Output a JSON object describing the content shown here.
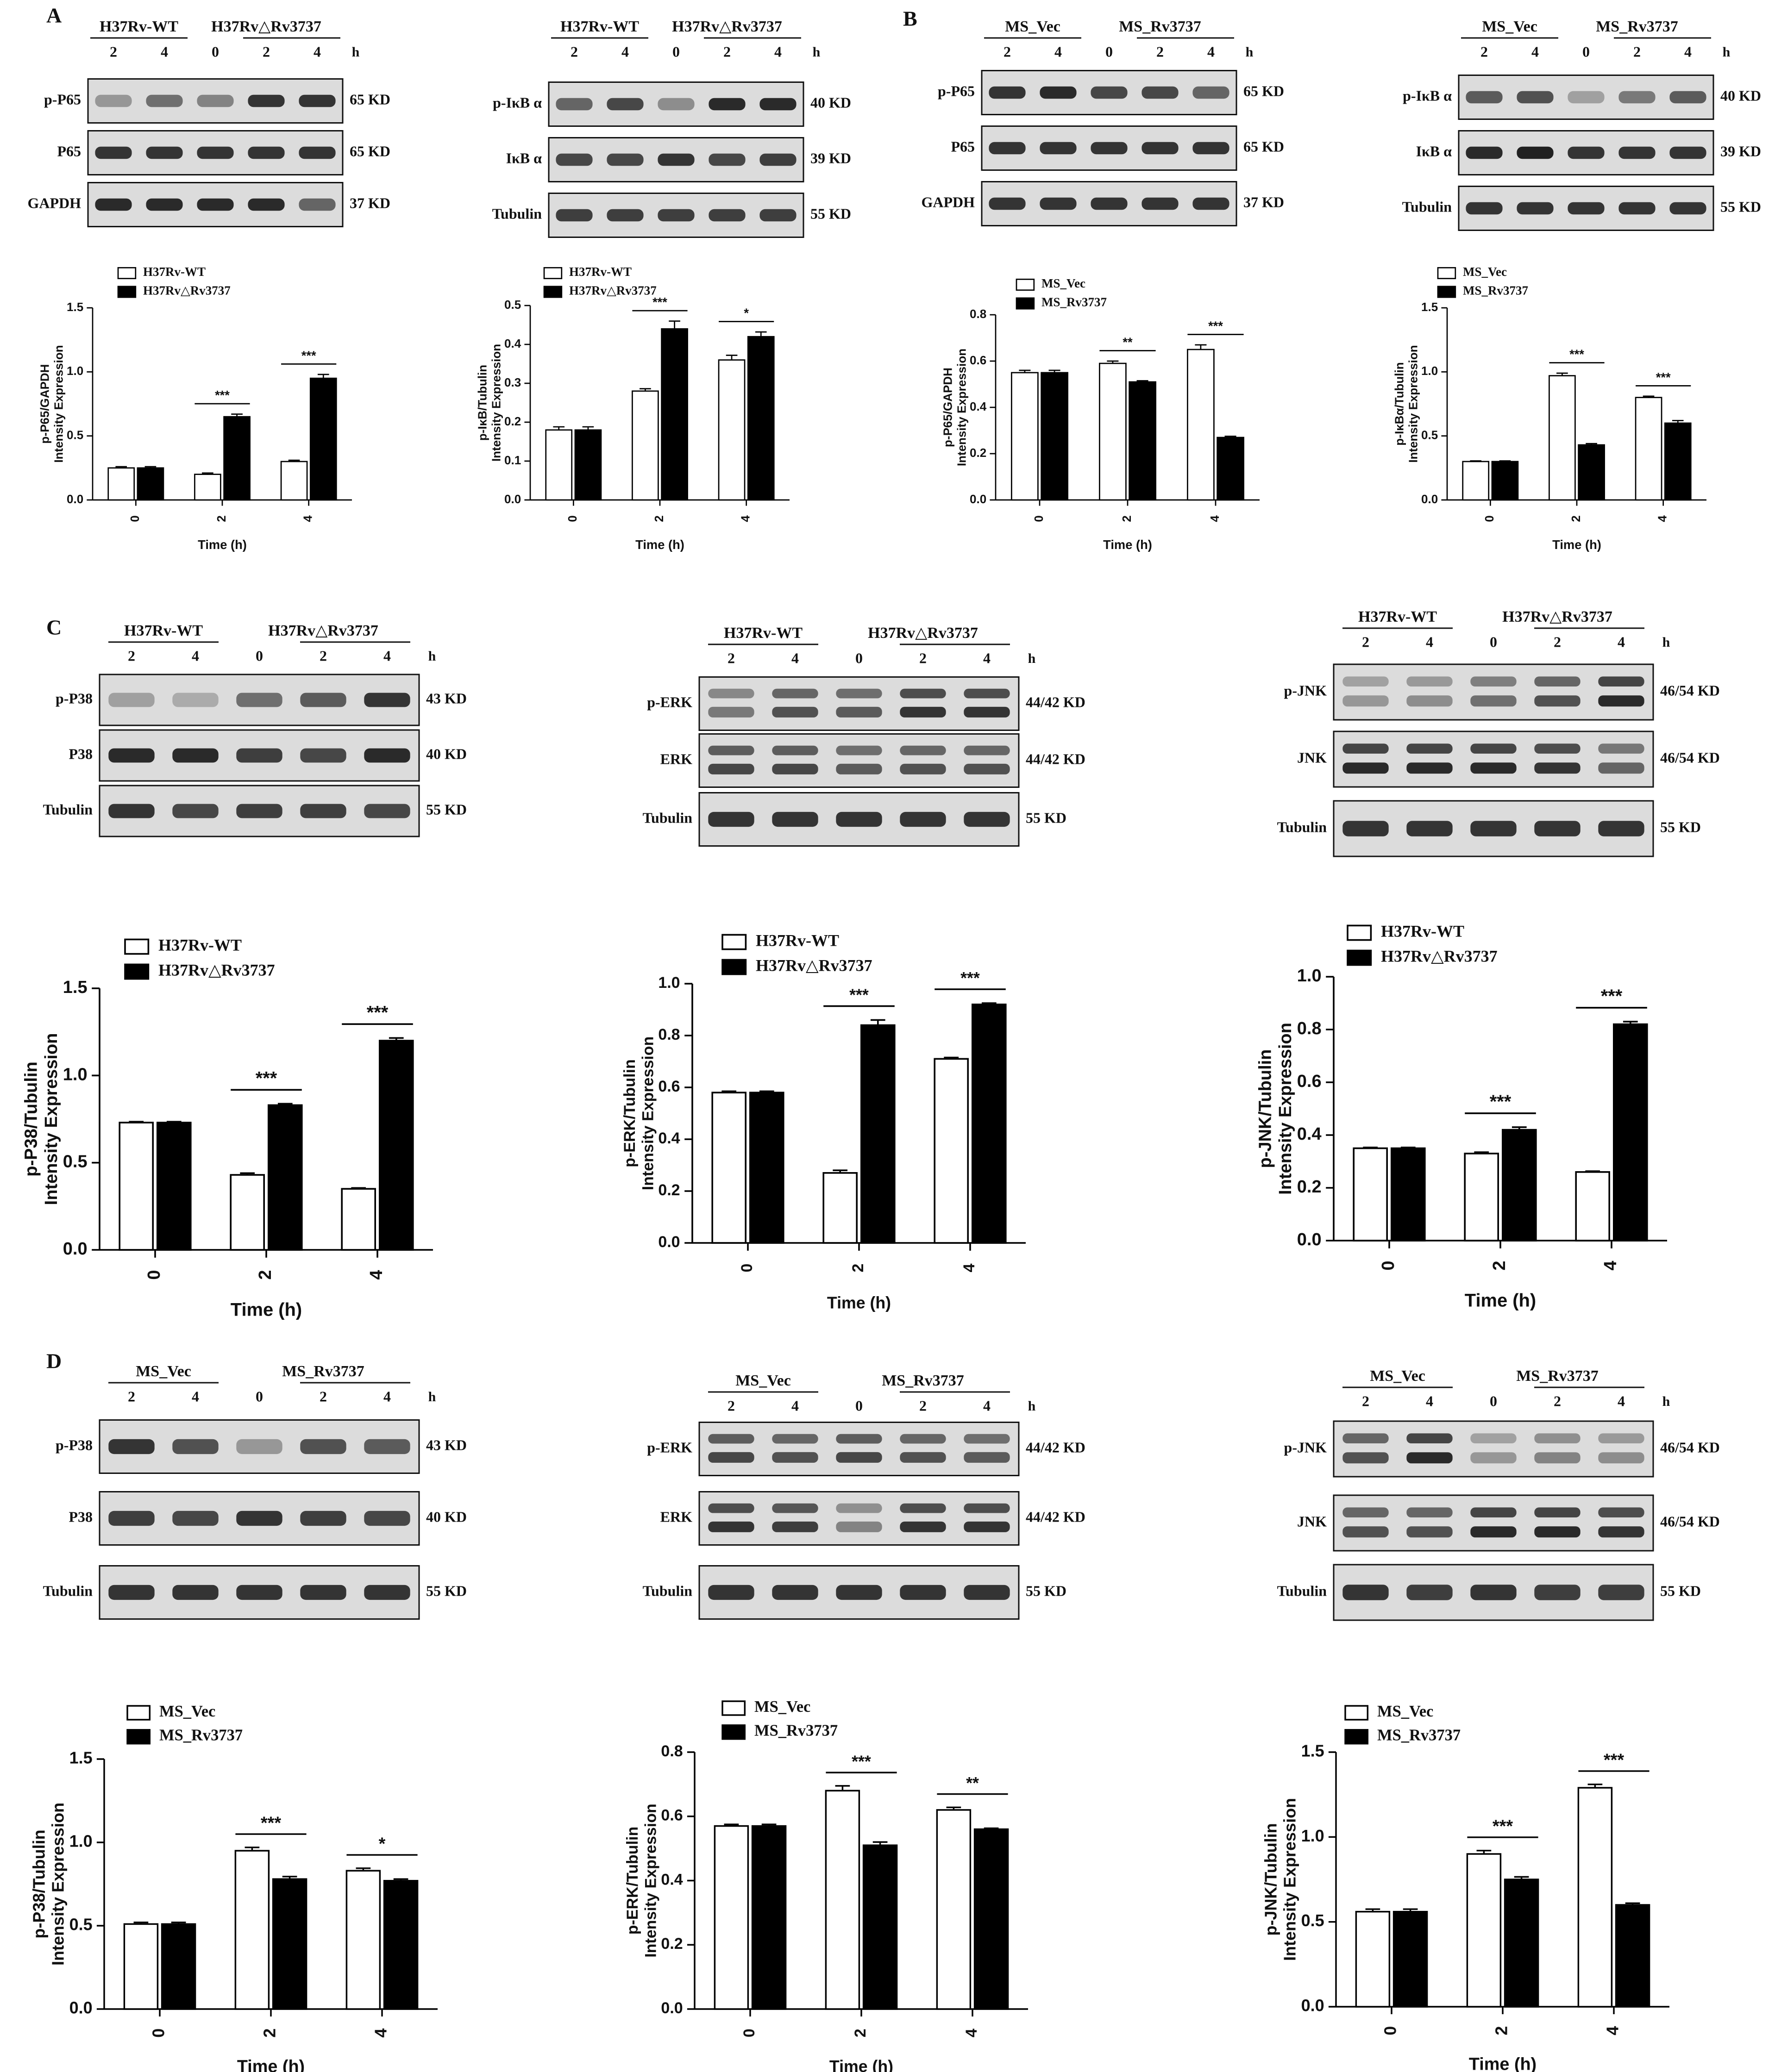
{
  "panel_letters": [
    "A",
    "B",
    "C",
    "D"
  ],
  "time_unit": "h",
  "band_colors": {
    "dark": "#161616",
    "blot_bg": "#dcdcdc"
  },
  "blots": [
    {
      "panel": "A",
      "group1": "H37Rv-WT",
      "group2": "H37Rv△Rv3737",
      "lanes": [
        "2",
        "4",
        "0",
        "2",
        "4"
      ],
      "rows": [
        {
          "label": "p-P65",
          "kd": "65 KD",
          "intensity": [
            0.35,
            0.55,
            0.45,
            0.85,
            0.85
          ]
        },
        {
          "label": "P65",
          "kd": "65 KD",
          "intensity": [
            0.85,
            0.85,
            0.85,
            0.85,
            0.85
          ]
        },
        {
          "label": "GAPDH",
          "kd": "37 KD",
          "intensity": [
            0.9,
            0.9,
            0.9,
            0.9,
            0.6
          ]
        }
      ]
    },
    {
      "panel": "A",
      "group1": "H37Rv-WT",
      "group2": "H37Rv△Rv3737",
      "lanes": [
        "2",
        "4",
        "0",
        "2",
        "4"
      ],
      "rows": [
        {
          "label": "p-IκB α",
          "kd": "40 KD",
          "intensity": [
            0.6,
            0.75,
            0.4,
            0.9,
            0.9
          ]
        },
        {
          "label": "IκB α",
          "kd": "39 KD",
          "intensity": [
            0.75,
            0.75,
            0.85,
            0.75,
            0.8
          ]
        },
        {
          "label": "Tubulin",
          "kd": "55 KD",
          "intensity": [
            0.8,
            0.8,
            0.8,
            0.8,
            0.8
          ]
        }
      ]
    },
    {
      "panel": "B",
      "group1": "MS_Vec",
      "group2": "MS_Rv3737",
      "lanes": [
        "2",
        "4",
        "0",
        "2",
        "4"
      ],
      "rows": [
        {
          "label": "p-P65",
          "kd": "65 KD",
          "intensity": [
            0.85,
            0.9,
            0.75,
            0.75,
            0.6
          ]
        },
        {
          "label": "P65",
          "kd": "65 KD",
          "intensity": [
            0.85,
            0.85,
            0.85,
            0.85,
            0.85
          ]
        },
        {
          "label": "GAPDH",
          "kd": "37 KD",
          "intensity": [
            0.85,
            0.85,
            0.85,
            0.85,
            0.85
          ]
        }
      ]
    },
    {
      "panel": "B",
      "group1": "MS_Vec",
      "group2": "MS_Rv3737",
      "lanes": [
        "2",
        "4",
        "0",
        "2",
        "4"
      ],
      "rows": [
        {
          "label": "p-IκB α",
          "kd": "40 KD",
          "intensity": [
            0.65,
            0.7,
            0.3,
            0.5,
            0.65
          ]
        },
        {
          "label": "IκB α",
          "kd": "39 KD",
          "intensity": [
            0.9,
            0.95,
            0.85,
            0.85,
            0.85
          ]
        },
        {
          "label": "Tubulin",
          "kd": "55 KD",
          "intensity": [
            0.85,
            0.85,
            0.85,
            0.85,
            0.85
          ]
        }
      ]
    },
    {
      "panel": "C",
      "group1": "H37Rv-WT",
      "group2": "H37Rv△Rv3737",
      "lanes": [
        "2",
        "4",
        "0",
        "2",
        "4"
      ],
      "rows": [
        {
          "label": "p-P38",
          "kd": "43 KD",
          "intensity": [
            0.3,
            0.25,
            0.55,
            0.65,
            0.85
          ]
        },
        {
          "label": "P38",
          "kd": "40 KD",
          "intensity": [
            0.9,
            0.9,
            0.8,
            0.75,
            0.9
          ]
        },
        {
          "label": "Tubulin",
          "kd": "55 KD",
          "intensity": [
            0.85,
            0.75,
            0.8,
            0.8,
            0.75
          ]
        }
      ]
    },
    {
      "panel": "C",
      "group1": "H37Rv-WT",
      "group2": "H37Rv△Rv3737",
      "lanes": [
        "2",
        "4",
        "0",
        "2",
        "4"
      ],
      "rows": [
        {
          "label": "p-ERK",
          "kd": "44/42 KD",
          "intensity": [
            0.5,
            0.7,
            0.65,
            0.85,
            0.85
          ],
          "double": true
        },
        {
          "label": "ERK",
          "kd": "44/42 KD",
          "intensity": [
            0.75,
            0.75,
            0.65,
            0.7,
            0.7
          ],
          "double": true
        },
        {
          "label": "Tubulin",
          "kd": "55 KD",
          "intensity": [
            0.85,
            0.85,
            0.85,
            0.85,
            0.85
          ]
        }
      ]
    },
    {
      "panel": "C",
      "group1": "H37Rv-WT",
      "group2": "H37Rv△Rv3737",
      "lanes": [
        "2",
        "4",
        "0",
        "2",
        "4"
      ],
      "rows": [
        {
          "label": "p-JNK",
          "kd": "46/54 KD",
          "intensity": [
            0.35,
            0.4,
            0.55,
            0.7,
            0.9
          ],
          "double": true
        },
        {
          "label": "JNK",
          "kd": "46/54 KD",
          "intensity": [
            0.9,
            0.9,
            0.9,
            0.85,
            0.6
          ],
          "double": true
        },
        {
          "label": "Tubulin",
          "kd": "55 KD",
          "intensity": [
            0.85,
            0.85,
            0.85,
            0.85,
            0.85
          ]
        }
      ]
    },
    {
      "panel": "D",
      "group1": "MS_Vec",
      "group2": "MS_Rv3737",
      "lanes": [
        "2",
        "4",
        "0",
        "2",
        "4"
      ],
      "rows": [
        {
          "label": "p-P38",
          "kd": "43 KD",
          "intensity": [
            0.85,
            0.7,
            0.35,
            0.7,
            0.65
          ]
        },
        {
          "label": "P38",
          "kd": "40 KD",
          "intensity": [
            0.8,
            0.75,
            0.85,
            0.8,
            0.75
          ]
        },
        {
          "label": "Tubulin",
          "kd": "55 KD",
          "intensity": [
            0.85,
            0.85,
            0.85,
            0.85,
            0.85
          ]
        }
      ]
    },
    {
      "panel": "D",
      "group1": "MS_Vec",
      "group2": "MS_Rv3737",
      "lanes": [
        "2",
        "4",
        "0",
        "2",
        "4"
      ],
      "rows": [
        {
          "label": "p-ERK",
          "kd": "44/42 KD",
          "intensity": [
            0.75,
            0.7,
            0.75,
            0.7,
            0.65
          ],
          "double": true
        },
        {
          "label": "ERK",
          "kd": "44/42 KD",
          "intensity": [
            0.85,
            0.8,
            0.45,
            0.85,
            0.85
          ],
          "double": true
        },
        {
          "label": "Tubulin",
          "kd": "55 KD",
          "intensity": [
            0.85,
            0.85,
            0.85,
            0.85,
            0.85
          ]
        }
      ]
    },
    {
      "panel": "D",
      "group1": "MS_Vec",
      "group2": "MS_Rv3737",
      "lanes": [
        "2",
        "4",
        "0",
        "2",
        "4"
      ],
      "rows": [
        {
          "label": "p-JNK",
          "kd": "46/54 KD",
          "intensity": [
            0.7,
            0.9,
            0.35,
            0.45,
            0.4
          ],
          "double": true
        },
        {
          "label": "JNK",
          "kd": "46/54 KD",
          "intensity": [
            0.7,
            0.7,
            0.9,
            0.9,
            0.85
          ],
          "double": true
        },
        {
          "label": "Tubulin",
          "kd": "55 KD",
          "intensity": [
            0.85,
            0.8,
            0.85,
            0.8,
            0.8
          ]
        }
      ]
    }
  ],
  "chart_data": [
    {
      "type": "bar",
      "panel": "A",
      "categories": [
        "0",
        "2",
        "4"
      ],
      "series": [
        {
          "name": "H37Rv-WT",
          "values": [
            0.25,
            0.2,
            0.3
          ],
          "errors": [
            0.01,
            0.01,
            0.01
          ]
        },
        {
          "name": "H37Rv△Rv3737",
          "values": [
            0.25,
            0.65,
            0.95
          ],
          "errors": [
            0.01,
            0.02,
            0.03
          ]
        }
      ],
      "xlabel": "Time (h)",
      "ylabel": [
        "p-P65/GAPDH",
        "Intensity Expression"
      ],
      "ylim": [
        0,
        1.5
      ],
      "yticks": [
        0,
        0.5,
        1.0,
        1.5
      ],
      "yticklabels": [
        "0.0",
        "0.5",
        "1.0",
        "1.5"
      ],
      "significance": [
        {
          "category": "2",
          "label": "***"
        },
        {
          "category": "4",
          "label": "***"
        }
      ],
      "legend": "top-left"
    },
    {
      "type": "bar",
      "panel": "A",
      "categories": [
        "0",
        "2",
        "4"
      ],
      "series": [
        {
          "name": "H37Rv-WT",
          "values": [
            0.18,
            0.28,
            0.36
          ],
          "errors": [
            0.008,
            0.006,
            0.012
          ]
        },
        {
          "name": "H37Rv△Rv3737",
          "values": [
            0.18,
            0.44,
            0.42
          ],
          "errors": [
            0.008,
            0.02,
            0.012
          ]
        }
      ],
      "xlabel": "Time (h)",
      "ylabel": [
        "p-IκB/Tubulin",
        "Intensity Expression"
      ],
      "ylim": [
        0,
        0.5
      ],
      "yticks": [
        0,
        0.1,
        0.2,
        0.3,
        0.4,
        0.5
      ],
      "yticklabels": [
        "0.0",
        "0.1",
        "0.2",
        "0.3",
        "0.4",
        "0.5"
      ],
      "significance": [
        {
          "category": "2",
          "label": "***"
        },
        {
          "category": "4",
          "label": "*"
        }
      ],
      "legend": "top-left"
    },
    {
      "type": "bar",
      "panel": "B",
      "categories": [
        "0",
        "2",
        "4"
      ],
      "series": [
        {
          "name": "MS_Vec",
          "values": [
            0.55,
            0.59,
            0.65
          ],
          "errors": [
            0.01,
            0.01,
            0.02
          ]
        },
        {
          "name": "MS_Rv3737",
          "values": [
            0.55,
            0.51,
            0.27
          ],
          "errors": [
            0.01,
            0.005,
            0.005
          ]
        }
      ],
      "xlabel": "Time (h)",
      "ylabel": [
        "p-P65/GAPDH",
        "Intensity Expression"
      ],
      "ylim": [
        0,
        0.8
      ],
      "yticks": [
        0,
        0.2,
        0.4,
        0.6,
        0.8
      ],
      "yticklabels": [
        "0.0",
        "0.2",
        "0.4",
        "0.6",
        "0.8"
      ],
      "significance": [
        {
          "category": "2",
          "label": "**"
        },
        {
          "category": "4",
          "label": "***"
        }
      ],
      "legend": "top-left"
    },
    {
      "type": "bar",
      "panel": "B",
      "categories": [
        "0",
        "2",
        "4"
      ],
      "series": [
        {
          "name": "MS_Vec",
          "values": [
            0.3,
            0.97,
            0.8
          ],
          "errors": [
            0.005,
            0.02,
            0.01
          ]
        },
        {
          "name": "MS_Rv3737",
          "values": [
            0.3,
            0.43,
            0.6
          ],
          "errors": [
            0.005,
            0.01,
            0.02
          ]
        }
      ],
      "xlabel": "Time (h)",
      "ylabel": [
        "p-IκBα/Tubulin",
        "Intensity Expression"
      ],
      "ylim": [
        0,
        1.5
      ],
      "yticks": [
        0,
        0.5,
        1.0,
        1.5
      ],
      "yticklabels": [
        "0.0",
        "0.5",
        "1.0",
        "1.5"
      ],
      "significance": [
        {
          "category": "2",
          "label": "***"
        },
        {
          "category": "4",
          "label": "***"
        }
      ],
      "legend": "top-left"
    },
    {
      "type": "bar",
      "panel": "C",
      "categories": [
        "0",
        "2",
        "4"
      ],
      "series": [
        {
          "name": "H37Rv-WT",
          "values": [
            0.73,
            0.43,
            0.35
          ],
          "errors": [
            0.005,
            0.01,
            0.005
          ]
        },
        {
          "name": "H37Rv△Rv3737",
          "values": [
            0.73,
            0.83,
            1.2
          ],
          "errors": [
            0.005,
            0.008,
            0.015
          ]
        }
      ],
      "xlabel": "Time (h)",
      "ylabel": [
        "p-P38/Tubulin",
        "Intensity Expression"
      ],
      "ylim": [
        0,
        1.5
      ],
      "yticks": [
        0,
        0.5,
        1.0,
        1.5
      ],
      "yticklabels": [
        "0.0",
        "0.5",
        "1.0",
        "1.5"
      ],
      "significance": [
        {
          "category": "2",
          "label": "***"
        },
        {
          "category": "4",
          "label": "***"
        }
      ],
      "legend": "top-left"
    },
    {
      "type": "bar",
      "panel": "C",
      "categories": [
        "0",
        "2",
        "4"
      ],
      "series": [
        {
          "name": "H37Rv-WT",
          "values": [
            0.58,
            0.27,
            0.71
          ],
          "errors": [
            0.005,
            0.01,
            0.005
          ]
        },
        {
          "name": "H37Rv△Rv3737",
          "values": [
            0.58,
            0.84,
            0.92
          ],
          "errors": [
            0.005,
            0.02,
            0.005
          ]
        }
      ],
      "xlabel": "Time (h)",
      "ylabel": [
        "p-ERK/Tubulin",
        "Intensity Expression"
      ],
      "ylim": [
        0,
        1.0
      ],
      "yticks": [
        0,
        0.2,
        0.4,
        0.6,
        0.8,
        1.0
      ],
      "yticklabels": [
        "0.0",
        "0.2",
        "0.4",
        "0.6",
        "0.8",
        "1.0"
      ],
      "significance": [
        {
          "category": "2",
          "label": "***"
        },
        {
          "category": "4",
          "label": "***"
        }
      ],
      "legend": "top-left"
    },
    {
      "type": "bar",
      "panel": "C",
      "categories": [
        "0",
        "2",
        "4"
      ],
      "series": [
        {
          "name": "H37Rv-WT",
          "values": [
            0.35,
            0.33,
            0.26
          ],
          "errors": [
            0.003,
            0.005,
            0.003
          ]
        },
        {
          "name": "H37Rv△Rv3737",
          "values": [
            0.35,
            0.42,
            0.82
          ],
          "errors": [
            0.003,
            0.01,
            0.01
          ]
        }
      ],
      "xlabel": "Time (h)",
      "ylabel": [
        "p-JNK/Tubulin",
        "Intensity Expression"
      ],
      "ylim": [
        0,
        1.0
      ],
      "yticks": [
        0,
        0.2,
        0.4,
        0.6,
        0.8,
        1.0
      ],
      "yticklabels": [
        "0.0",
        "0.2",
        "0.4",
        "0.6",
        "0.8",
        "1.0"
      ],
      "significance": [
        {
          "category": "2",
          "label": "***"
        },
        {
          "category": "4",
          "label": "***"
        }
      ],
      "legend": "top-left"
    },
    {
      "type": "bar",
      "panel": "D",
      "categories": [
        "0",
        "2",
        "4"
      ],
      "series": [
        {
          "name": "MS_Vec",
          "values": [
            0.51,
            0.95,
            0.83
          ],
          "errors": [
            0.01,
            0.02,
            0.015
          ]
        },
        {
          "name": "MS_Rv3737",
          "values": [
            0.51,
            0.78,
            0.77
          ],
          "errors": [
            0.01,
            0.015,
            0.01
          ]
        }
      ],
      "xlabel": "Time (h)",
      "ylabel": [
        "p-P38/Tubulin",
        "Intensity Expression"
      ],
      "ylim": [
        0,
        1.5
      ],
      "yticks": [
        0,
        0.5,
        1.0,
        1.5
      ],
      "yticklabels": [
        "0.0",
        "0.5",
        "1.0",
        "1.5"
      ],
      "significance": [
        {
          "category": "2",
          "label": "***"
        },
        {
          "category": "4",
          "label": "*"
        }
      ],
      "legend": "top-left"
    },
    {
      "type": "bar",
      "panel": "D",
      "categories": [
        "0",
        "2",
        "4"
      ],
      "series": [
        {
          "name": "MS_Vec",
          "values": [
            0.57,
            0.68,
            0.62
          ],
          "errors": [
            0.005,
            0.015,
            0.008
          ]
        },
        {
          "name": "MS_Rv3737",
          "values": [
            0.57,
            0.51,
            0.56
          ],
          "errors": [
            0.005,
            0.01,
            0.003
          ]
        }
      ],
      "xlabel": "Time (h)",
      "ylabel": [
        "p-ERK/Tubulin",
        "Intensity Expression"
      ],
      "ylim": [
        0,
        0.8
      ],
      "yticks": [
        0,
        0.2,
        0.4,
        0.6,
        0.8
      ],
      "yticklabels": [
        "0.0",
        "0.2",
        "0.4",
        "0.6",
        "0.8"
      ],
      "significance": [
        {
          "category": "2",
          "label": "***"
        },
        {
          "category": "4",
          "label": "**"
        }
      ],
      "legend": "top-left"
    },
    {
      "type": "bar",
      "panel": "D",
      "categories": [
        "0",
        "2",
        "4"
      ],
      "series": [
        {
          "name": "MS_Vec",
          "values": [
            0.56,
            0.9,
            1.29
          ],
          "errors": [
            0.015,
            0.02,
            0.02
          ]
        },
        {
          "name": "MS_Rv3737",
          "values": [
            0.56,
            0.75,
            0.6
          ],
          "errors": [
            0.015,
            0.015,
            0.01
          ]
        }
      ],
      "xlabel": "Time (h)",
      "ylabel": [
        "p-JNK/Tubulin",
        "Intensity Expression"
      ],
      "ylim": [
        0,
        1.5
      ],
      "yticks": [
        0,
        0.5,
        1.0,
        1.5
      ],
      "yticklabels": [
        "0.0",
        "0.5",
        "1.0",
        "1.5"
      ],
      "significance": [
        {
          "category": "2",
          "label": "***"
        },
        {
          "category": "4",
          "label": "***"
        }
      ],
      "legend": "top-left"
    }
  ]
}
